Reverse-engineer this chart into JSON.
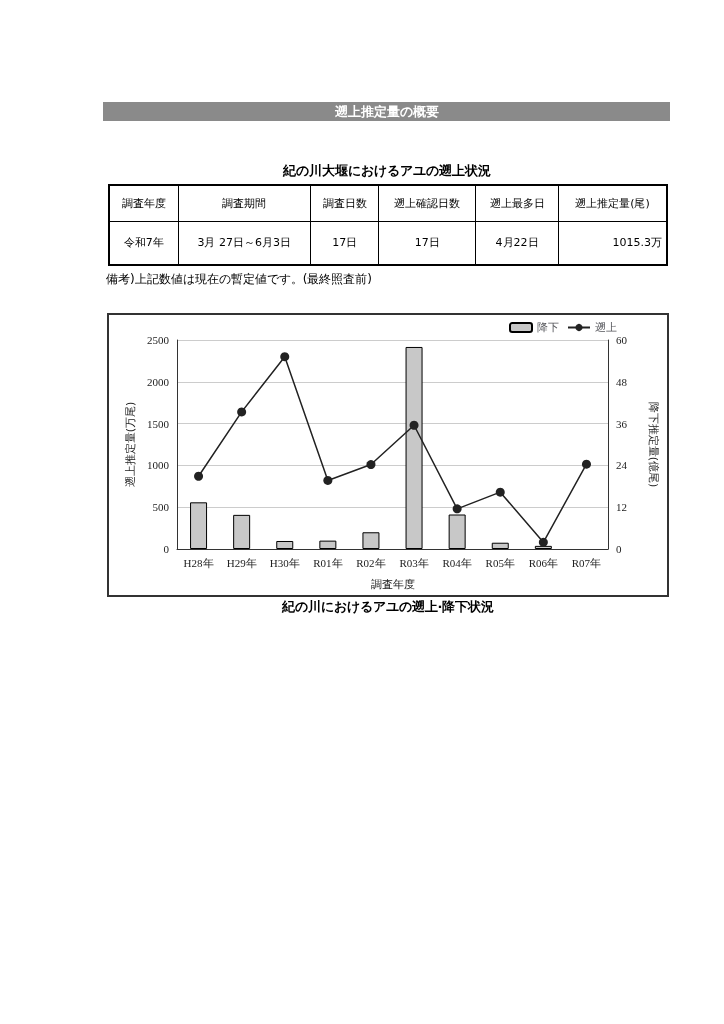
{
  "chart_data": [
    {
      "type": "other",
      "title": "遡上推定量の概要",
      "subtitle": "紀の川大堰におけるアユの遡上状況",
      "annotations": [
        "調査年度",
        "調査期間",
        "調査日数",
        "遡上確認日数",
        "遡上最多日",
        "遡上推定量(尾)",
        "令和7年",
        "3月 27日～6月3日",
        "17日",
        "17日",
        "4月22日",
        "1015.3万",
        "備考)上記数値は現在の暫定値です。(最終照査前)"
      ]
    },
    {
      "type": "bar",
      "title": "紀の川におけるアユの遡上·降下状況",
      "xlabel": "調査年度",
      "ylabel": "遡上推定量(万尾)",
      "y2label": "降下推定量(億尾)",
      "categories": [
        "H28年",
        "H29年",
        "H30年",
        "R01年",
        "R02年",
        "R03年",
        "R04年",
        "R05年",
        "R06年",
        "R07年"
      ],
      "series": [
        {
          "name": "降下",
          "type": "bar",
          "axis": "y2",
          "color": "#c8c8c8",
          "values": [
            13.4,
            9.8,
            2.3,
            2.4,
            4.8,
            58,
            9.9,
            1.8,
            0.9,
            null
          ]
        },
        {
          "name": "遡上",
          "type": "line",
          "color": "#222222",
          "values": [
            870,
            1640,
            2300,
            820,
            1010,
            1480,
            480,
            680,
            80,
            1015
          ]
        }
      ],
      "ylim": [
        0,
        2500
      ],
      "yticks": [
        0,
        500,
        1000,
        1500,
        2000,
        2500
      ],
      "y2lim": [
        0,
        60
      ],
      "y2ticks": [
        0,
        12,
        24,
        36,
        48,
        60
      ],
      "grid": "y",
      "legend": "top right",
      "marker": "circle",
      "line_style": "solid"
    }
  ]
}
